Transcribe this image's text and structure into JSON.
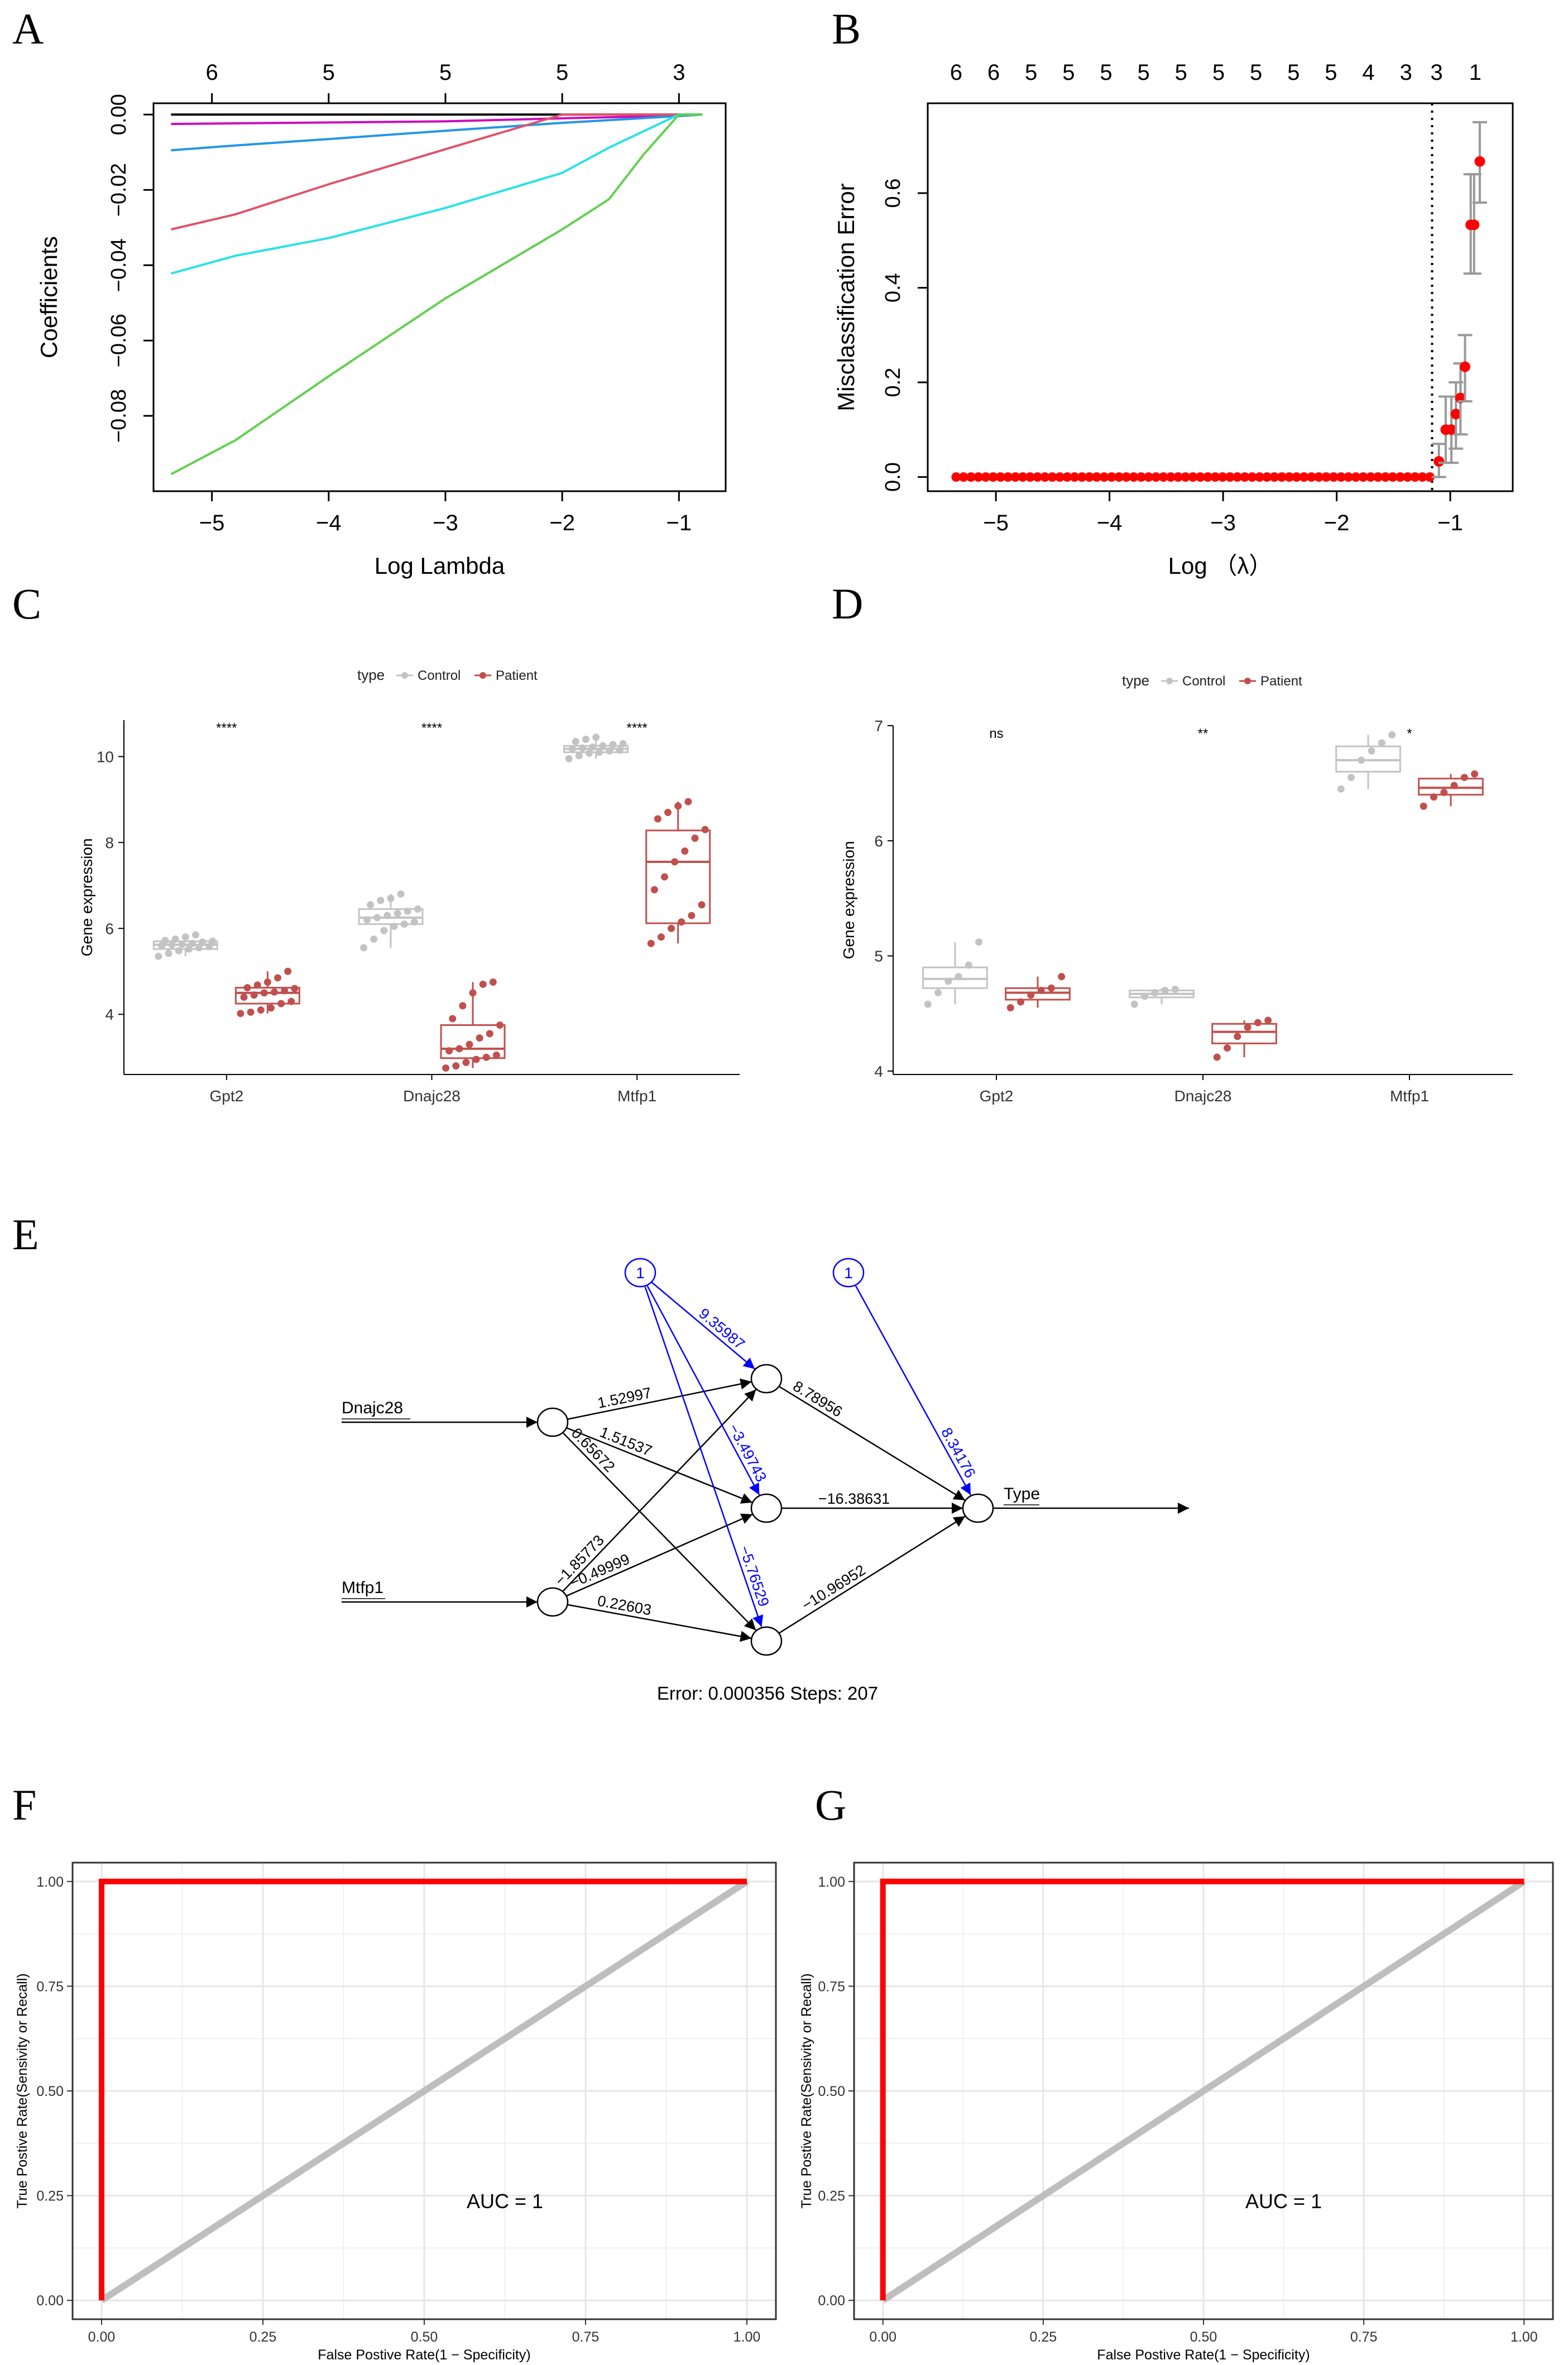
{
  "figure": {
    "panel_letters": [
      "A",
      "B",
      "C",
      "D",
      "E",
      "F",
      "G"
    ]
  },
  "chart_data": [
    {
      "panel": "A",
      "type": "line",
      "xlabel": "Log Lambda",
      "ylabel": "Coefficients",
      "xlim": [
        -5.5,
        -0.6
      ],
      "ylim": [
        -0.1,
        0.003
      ],
      "xticks": [
        -5,
        -4,
        -3,
        -2,
        -1
      ],
      "xtick_labels": [
        "−5",
        "−4",
        "−3",
        "−2",
        "−1"
      ],
      "yticks": [
        0.0,
        -0.02,
        -0.04,
        -0.06,
        -0.08
      ],
      "ytick_labels": [
        "0.00",
        "−0.02",
        "−0.04",
        "−0.06",
        "−0.08"
      ],
      "top_axis_ticks": [
        -5,
        -4,
        -3,
        -2,
        -1
      ],
      "top_axis_labels": [
        "6",
        "5",
        "5",
        "5",
        "3"
      ],
      "series": [
        {
          "name": "black",
          "color": "#000000",
          "x": [
            -5.35,
            -2.0,
            -1.0,
            -0.8
          ],
          "y": [
            0.0,
            0.0,
            0.0,
            0.0
          ]
        },
        {
          "name": "magenta",
          "color": "#cd0bbc",
          "x": [
            -5.35,
            -3.0,
            -2.0,
            -1.0,
            -0.8
          ],
          "y": [
            -0.0025,
            -0.0018,
            -0.001,
            -0.0003,
            0.0
          ]
        },
        {
          "name": "blue",
          "color": "#2297e6",
          "x": [
            -5.35,
            -4.8,
            -4.0,
            -3.0,
            -2.0,
            -1.0,
            -0.8
          ],
          "y": [
            -0.0095,
            -0.0082,
            -0.0065,
            -0.0043,
            -0.0022,
            -0.0004,
            0.0
          ]
        },
        {
          "name": "red",
          "color": "#df536b",
          "x": [
            -5.35,
            -4.8,
            -4.0,
            -3.0,
            -2.0,
            -1.0,
            -0.8
          ],
          "y": [
            -0.0305,
            -0.0265,
            -0.0185,
            -0.0092,
            0.0,
            0.0,
            0.0
          ]
        },
        {
          "name": "cyan",
          "color": "#28e2e5",
          "x": [
            -5.35,
            -4.8,
            -4.0,
            -3.0,
            -2.0,
            -1.6,
            -1.0,
            -0.8
          ],
          "y": [
            -0.0422,
            -0.0375,
            -0.0328,
            -0.0248,
            -0.0155,
            -0.0088,
            0.0,
            0.0
          ]
        },
        {
          "name": "green",
          "color": "#61d04f",
          "x": [
            -5.35,
            -4.8,
            -4.0,
            -3.0,
            -2.0,
            -1.6,
            -1.3,
            -1.0,
            -0.8
          ],
          "y": [
            -0.0955,
            -0.0865,
            -0.0695,
            -0.0488,
            -0.0305,
            -0.0225,
            -0.0105,
            0.0,
            0.0
          ]
        }
      ]
    },
    {
      "panel": "B",
      "type": "scatter",
      "xlabel": "Log （λ）",
      "ylabel": "Misclassification Error",
      "xlim": [
        -5.6,
        -0.45
      ],
      "ylim": [
        -0.03,
        0.79
      ],
      "xticks": [
        -5,
        -4,
        -3,
        -2,
        -1
      ],
      "xtick_labels": [
        "−5",
        "−4",
        "−3",
        "−2",
        "−1"
      ],
      "yticks": [
        0.0,
        0.2,
        0.4,
        0.6
      ],
      "ytick_labels": [
        "0.0",
        "0.2",
        "0.4",
        "0.6"
      ],
      "top_axis_labels": [
        "6",
        "6",
        "5",
        "5",
        "5",
        "5",
        "5",
        "5",
        "5",
        "5",
        "5",
        "4",
        "3",
        "3",
        "1"
      ],
      "top_axis_x": [
        -5.35,
        -5.02,
        -4.69,
        -4.36,
        -4.03,
        -3.7,
        -3.37,
        -3.04,
        -2.71,
        -2.38,
        -2.05,
        -1.72,
        -1.39,
        -1.12,
        -0.78
      ],
      "vline_x": -1.16,
      "zero_points_x_range": [
        -5.35,
        -1.18
      ],
      "zero_points_count": 65,
      "points": [
        {
          "x": -1.1,
          "y": 0.033,
          "lo": 0.0,
          "hi": 0.07
        },
        {
          "x": -1.04,
          "y": 0.1,
          "lo": 0.03,
          "hi": 0.17
        },
        {
          "x": -0.99,
          "y": 0.1,
          "lo": 0.03,
          "hi": 0.17
        },
        {
          "x": -0.95,
          "y": 0.133,
          "lo": 0.06,
          "hi": 0.2
        },
        {
          "x": -0.91,
          "y": 0.167,
          "lo": 0.09,
          "hi": 0.24
        },
        {
          "x": -0.87,
          "y": 0.233,
          "lo": 0.16,
          "hi": 0.3
        },
        {
          "x": -0.82,
          "y": 0.533,
          "lo": 0.43,
          "hi": 0.64
        },
        {
          "x": -0.79,
          "y": 0.533,
          "lo": 0.43,
          "hi": 0.64
        },
        {
          "x": -0.74,
          "y": 0.667,
          "lo": 0.58,
          "hi": 0.75
        }
      ]
    },
    {
      "panel": "C",
      "type": "box",
      "legend_title": "type",
      "legend": [
        "Control",
        "Patient"
      ],
      "ylabel": "Gene expression",
      "categories": [
        "Gpt2",
        "Dnajc28",
        "Mtfp1"
      ],
      "ylim": [
        2.6,
        10.85
      ],
      "yticks": [
        4,
        6,
        8,
        10
      ],
      "ytick_labels": [
        "4",
        "6",
        "8",
        "10"
      ],
      "significance": [
        "****",
        "****",
        "****"
      ],
      "series": [
        {
          "name": "Control",
          "color": "#c3c3c3",
          "boxes": [
            {
              "min": 5.35,
              "q1": 5.52,
              "median": 5.62,
              "q3": 5.7,
              "max": 5.85,
              "points": [
                5.35,
                5.42,
                5.48,
                5.52,
                5.55,
                5.58,
                5.6,
                5.62,
                5.63,
                5.65,
                5.68,
                5.7,
                5.72,
                5.75,
                5.8,
                5.85
              ]
            },
            {
              "min": 5.55,
              "q1": 6.1,
              "median": 6.25,
              "q3": 6.45,
              "max": 6.8,
              "points": [
                5.55,
                5.75,
                5.95,
                6.05,
                6.1,
                6.15,
                6.2,
                6.25,
                6.3,
                6.35,
                6.4,
                6.45,
                6.55,
                6.65,
                6.7,
                6.8
              ]
            },
            {
              "min": 9.95,
              "q1": 10.1,
              "median": 10.18,
              "q3": 10.25,
              "max": 10.45,
              "points": [
                9.95,
                10.02,
                10.08,
                10.1,
                10.13,
                10.15,
                10.18,
                10.2,
                10.22,
                10.25,
                10.28,
                10.3,
                10.35,
                10.4,
                10.45
              ]
            }
          ]
        },
        {
          "name": "Patient",
          "color": "#c0504d",
          "boxes": [
            {
              "min": 4.02,
              "q1": 4.25,
              "median": 4.5,
              "q3": 4.62,
              "max": 5.0,
              "points": [
                4.02,
                4.05,
                4.1,
                4.15,
                4.25,
                4.3,
                4.4,
                4.45,
                4.5,
                4.52,
                4.55,
                4.6,
                4.62,
                4.68,
                4.75,
                4.85,
                5.0
              ]
            },
            {
              "min": 2.75,
              "q1": 2.98,
              "median": 3.2,
              "q3": 3.75,
              "max": 4.75,
              "points": [
                2.75,
                2.8,
                2.88,
                2.95,
                3.0,
                3.05,
                3.15,
                3.2,
                3.3,
                3.45,
                3.55,
                3.75,
                3.9,
                4.2,
                4.5,
                4.7,
                4.75
              ]
            },
            {
              "min": 5.65,
              "q1": 6.12,
              "median": 7.55,
              "q3": 8.28,
              "max": 8.95,
              "points": [
                5.65,
                5.8,
                6.0,
                6.15,
                6.3,
                6.55,
                6.9,
                7.2,
                7.55,
                7.8,
                8.1,
                8.3,
                8.55,
                8.7,
                8.85,
                8.95
              ]
            }
          ]
        }
      ]
    },
    {
      "panel": "D",
      "type": "box",
      "legend_title": "type",
      "legend": [
        "Control",
        "Patient"
      ],
      "ylabel": "Gene expression",
      "categories": [
        "Gpt2",
        "Dnajc28",
        "Mtfp1"
      ],
      "ylim": [
        3.97,
        7.0
      ],
      "yticks": [
        4,
        5,
        6,
        7
      ],
      "ytick_labels": [
        "4",
        "5",
        "6",
        "7"
      ],
      "significance": [
        "ns",
        "**",
        "*"
      ],
      "series": [
        {
          "name": "Control",
          "color": "#c3c3c3",
          "boxes": [
            {
              "min": 4.58,
              "q1": 4.72,
              "median": 4.8,
              "q3": 4.9,
              "max": 5.12,
              "points": [
                4.58,
                4.68,
                4.78,
                4.82,
                4.92,
                5.12
              ]
            },
            {
              "min": 4.58,
              "q1": 4.64,
              "median": 4.67,
              "q3": 4.7,
              "max": 4.72,
              "points": [
                4.58,
                4.65,
                4.68,
                4.7,
                4.71
              ]
            },
            {
              "min": 6.45,
              "q1": 6.6,
              "median": 6.7,
              "q3": 6.82,
              "max": 6.92,
              "points": [
                6.45,
                6.55,
                6.7,
                6.78,
                6.85,
                6.92
              ]
            }
          ]
        },
        {
          "name": "Patient",
          "color": "#c0504d",
          "boxes": [
            {
              "min": 4.55,
              "q1": 4.62,
              "median": 4.68,
              "q3": 4.72,
              "max": 4.82,
              "points": [
                4.55,
                4.6,
                4.66,
                4.7,
                4.72,
                4.82
              ]
            },
            {
              "min": 4.12,
              "q1": 4.24,
              "median": 4.34,
              "q3": 4.41,
              "max": 4.44,
              "points": [
                4.12,
                4.2,
                4.3,
                4.38,
                4.42,
                4.44
              ]
            },
            {
              "min": 6.3,
              "q1": 6.4,
              "median": 6.46,
              "q3": 6.54,
              "max": 6.58,
              "points": [
                6.3,
                6.38,
                6.42,
                6.48,
                6.55,
                6.58
              ]
            }
          ]
        }
      ]
    },
    {
      "panel": "E",
      "type": "network",
      "inputs": [
        "Dnajc28",
        "Mtfp1"
      ],
      "output": "Type",
      "bias_label": "1",
      "input_weights": [
        {
          "from": "Dnajc28",
          "to": "h1",
          "label": "1.52997"
        },
        {
          "from": "Dnajc28",
          "to": "h2",
          "label": "1.51537"
        },
        {
          "from": "Dnajc28",
          "to": "h3",
          "label": "0.65672"
        },
        {
          "from": "Mtfp1",
          "to": "h1",
          "label": "−1.85773"
        },
        {
          "from": "Mtfp1",
          "to": "h2",
          "label": "−0.49999"
        },
        {
          "from": "Mtfp1",
          "to": "h3",
          "label": "0.22603"
        }
      ],
      "bias_weights": [
        {
          "to": "h1",
          "label": "9.35987"
        },
        {
          "to": "h2",
          "label": "−3.49743"
        },
        {
          "to": "h3",
          "label": "−5.76529"
        },
        {
          "to": "out",
          "label": "8.34176"
        }
      ],
      "output_weights": [
        {
          "from": "h1",
          "label": "8.78956"
        },
        {
          "from": "h2",
          "label": "−16.38631"
        },
        {
          "from": "h3",
          "label": "−10.96952"
        }
      ],
      "error_text": "Error: 0.000356   Steps: 207"
    },
    {
      "panel": "F",
      "type": "line",
      "xlabel": "False Postive Rate(1 − Specificity)",
      "ylabel": "True Postive Rate(Sensivity or Recall)",
      "xlim": [
        -0.045,
        1.045
      ],
      "ylim": [
        -0.045,
        1.045
      ],
      "xticks": [
        0,
        0.25,
        0.5,
        0.75,
        1.0
      ],
      "xtick_labels": [
        "0.00",
        "0.25",
        "0.50",
        "0.75",
        "1.00"
      ],
      "yticks": [
        0,
        0.25,
        0.5,
        0.75,
        1.0
      ],
      "ytick_labels": [
        "0.00",
        "0.25",
        "0.50",
        "0.75",
        "1.00"
      ],
      "roc": {
        "x": [
          0,
          0,
          1
        ],
        "y": [
          0,
          1,
          1
        ],
        "color": "#ff0000"
      },
      "diagonal": {
        "x": [
          0,
          1
        ],
        "y": [
          0,
          1
        ],
        "color": "#bebebe"
      },
      "annotation": "AUC = 1"
    },
    {
      "panel": "G",
      "type": "line",
      "xlabel": "False Postive Rate(1 − Specificity)",
      "ylabel": "True Postive Rate(Sensivity or Recall)",
      "xlim": [
        -0.045,
        1.045
      ],
      "ylim": [
        -0.045,
        1.045
      ],
      "xticks": [
        0,
        0.25,
        0.5,
        0.75,
        1.0
      ],
      "xtick_labels": [
        "0.00",
        "0.25",
        "0.50",
        "0.75",
        "1.00"
      ],
      "yticks": [
        0,
        0.25,
        0.5,
        0.75,
        1.0
      ],
      "ytick_labels": [
        "0.00",
        "0.25",
        "0.50",
        "0.75",
        "1.00"
      ],
      "roc": {
        "x": [
          0,
          0,
          1
        ],
        "y": [
          0,
          1,
          1
        ],
        "color": "#ff0000"
      },
      "diagonal": {
        "x": [
          0,
          1
        ],
        "y": [
          0,
          1
        ],
        "color": "#bebebe"
      },
      "annotation": "AUC = 1"
    }
  ]
}
